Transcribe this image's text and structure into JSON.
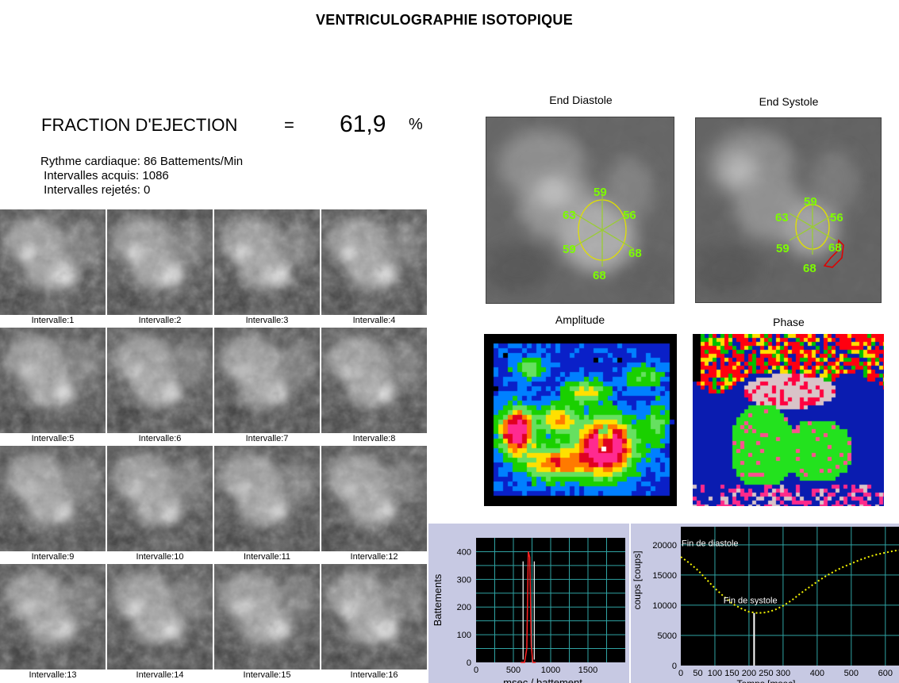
{
  "title": "VENTRICULOGRAPHIE ISOTOPIQUE",
  "ejection": {
    "label": "FRACTION D'EJECTION",
    "equals": "=",
    "value": "61,9",
    "unit": "%"
  },
  "info": {
    "heart_rate": "Rythme cardiaque: 86 Battements/Min",
    "acquired": " Intervalles acquis: 1086",
    "rejected": " Intervalles rejetés: 0"
  },
  "frames": [
    "Intervalle:1",
    "Intervalle:2",
    "Intervalle:3",
    "Intervalle:4",
    "Intervalle:5",
    "Intervalle:6",
    "Intervalle:7",
    "Intervalle:8",
    "Intervalle:9",
    "Intervalle:10",
    "Intervalle:11",
    "Intervalle:12",
    "Intervalle:13",
    "Intervalle:14",
    "Intervalle:15",
    "Intervalle:16"
  ],
  "panels": {
    "end_diastole": {
      "title": "End Diastole",
      "segments": [
        "59",
        "56",
        "68",
        "68",
        "59",
        "63"
      ]
    },
    "end_systole": {
      "title": "End Systole",
      "segments": [
        "59",
        "56",
        "68",
        "68",
        "59",
        "63"
      ]
    },
    "amplitude": {
      "title": "Amplitude"
    },
    "phase": {
      "title": "Phase"
    }
  },
  "chart_data": [
    {
      "type": "line",
      "xlabel": "msec / battement",
      "ylabel": "Battements",
      "xlim": [
        0,
        2000
      ],
      "ylim": [
        0,
        450
      ],
      "xticks": [
        "0",
        "500",
        "1000",
        "1500"
      ],
      "yticks": [
        "0",
        "100",
        "200",
        "300",
        "400"
      ],
      "series": [
        {
          "color": "#ff2020",
          "x": [
            600,
            650,
            680,
            700,
            720,
            740,
            760,
            800
          ],
          "y": [
            0,
            0,
            50,
            400,
            380,
            60,
            0,
            0
          ]
        }
      ],
      "markers": [
        630,
        780
      ],
      "colors": {
        "background": "#000000",
        "grid": "#2fa3a3"
      }
    },
    {
      "type": "line",
      "xlabel": "Temps [msec]",
      "ylabel": "coups [coups]",
      "xlim": [
        0,
        640
      ],
      "ylim": [
        0,
        23000
      ],
      "xticks": [
        "0",
        "50",
        "100",
        "150",
        "200",
        "250",
        "300",
        "400",
        "500",
        "600"
      ],
      "yticks": [
        "0",
        "5000",
        "10000",
        "15000",
        "20000"
      ],
      "annotations": [
        "Fin de diastole",
        "Fin de systole"
      ],
      "marker_x": 215,
      "series": [
        {
          "color": "#f5f500",
          "x": [
            0,
            25,
            50,
            75,
            100,
            125,
            150,
            175,
            200,
            225,
            250,
            275,
            300,
            325,
            350,
            375,
            400,
            425,
            450,
            475,
            500,
            525,
            550,
            575,
            600,
            625,
            640
          ],
          "y": [
            18000,
            17000,
            15800,
            14300,
            12800,
            11500,
            10300,
            9500,
            8900,
            8700,
            8800,
            9200,
            9900,
            10800,
            11900,
            12900,
            13900,
            14800,
            15600,
            16300,
            16900,
            17500,
            18000,
            18400,
            18700,
            19000,
            19100
          ]
        }
      ],
      "colors": {
        "background": "#000000",
        "grid": "#2fa3a3"
      }
    }
  ]
}
